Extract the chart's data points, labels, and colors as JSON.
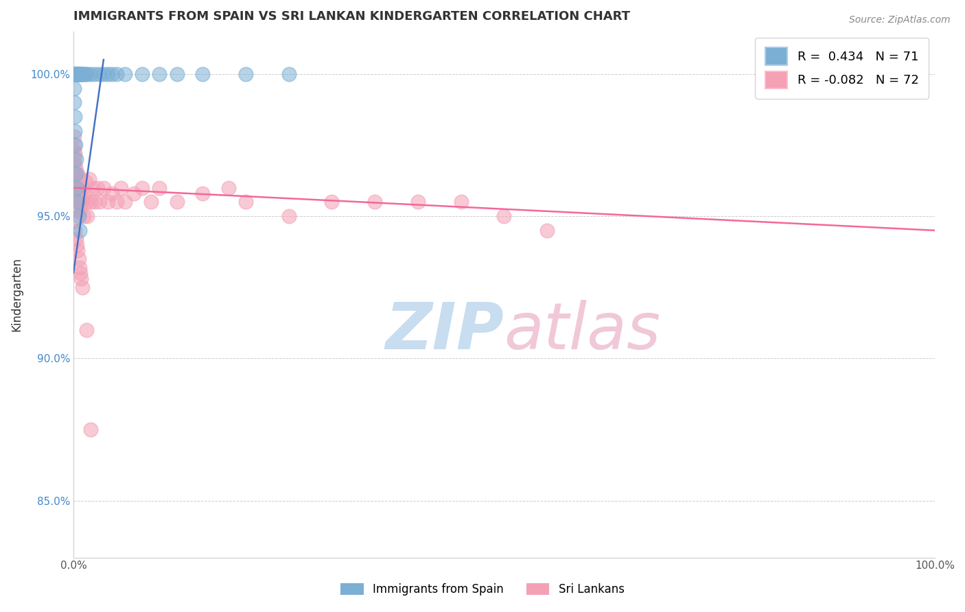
{
  "title": "IMMIGRANTS FROM SPAIN VS SRI LANKAN KINDERGARTEN CORRELATION CHART",
  "source_text": "Source: ZipAtlas.com",
  "ylabel": "Kindergarten",
  "xlim": [
    0.0,
    100.0
  ],
  "ylim": [
    83.0,
    101.5
  ],
  "y_ticks": [
    85.0,
    90.0,
    95.0,
    100.0
  ],
  "y_tick_labels": [
    "85.0%",
    "90.0%",
    "95.0%",
    "100.0%"
  ],
  "legend_blue_label": "R =  0.434   N = 71",
  "legend_pink_label": "R = -0.082   N = 72",
  "blue_color": "#7BAFD4",
  "pink_color": "#F4A0B5",
  "blue_line_color": "#4472C4",
  "pink_line_color": "#F4679A",
  "watermark": "ZIPatlas",
  "watermark_blue": "#C8DDEF",
  "watermark_pink": "#F0C8D8",
  "bottom_legend_blue": "Immigrants from Spain",
  "bottom_legend_pink": "Sri Lankans",
  "blue_x": [
    0.05,
    0.07,
    0.08,
    0.09,
    0.1,
    0.11,
    0.12,
    0.13,
    0.14,
    0.15,
    0.16,
    0.17,
    0.18,
    0.19,
    0.2,
    0.21,
    0.22,
    0.23,
    0.24,
    0.25,
    0.26,
    0.27,
    0.28,
    0.29,
    0.3,
    0.32,
    0.34,
    0.36,
    0.38,
    0.4,
    0.42,
    0.44,
    0.46,
    0.48,
    0.5,
    0.55,
    0.6,
    0.65,
    0.7,
    0.8,
    0.9,
    1.0,
    1.1,
    1.2,
    1.4,
    1.6,
    2.0,
    2.5,
    3.0,
    3.5,
    4.0,
    4.5,
    5.0,
    6.0,
    8.0,
    10.0,
    12.0,
    15.0,
    20.0,
    25.0,
    0.06,
    0.1,
    0.15,
    0.2,
    0.25,
    0.3,
    0.35,
    0.4,
    0.5,
    0.6,
    0.7
  ],
  "blue_y": [
    100.0,
    100.0,
    100.0,
    100.0,
    100.0,
    100.0,
    100.0,
    100.0,
    100.0,
    100.0,
    100.0,
    100.0,
    100.0,
    100.0,
    100.0,
    100.0,
    100.0,
    100.0,
    100.0,
    100.0,
    100.0,
    100.0,
    100.0,
    100.0,
    100.0,
    100.0,
    100.0,
    100.0,
    100.0,
    100.0,
    100.0,
    100.0,
    100.0,
    100.0,
    100.0,
    100.0,
    100.0,
    100.0,
    100.0,
    100.0,
    100.0,
    100.0,
    100.0,
    100.0,
    100.0,
    100.0,
    100.0,
    100.0,
    100.0,
    100.0,
    100.0,
    100.0,
    100.0,
    100.0,
    100.0,
    100.0,
    100.0,
    100.0,
    100.0,
    100.0,
    99.5,
    99.0,
    98.5,
    98.0,
    97.5,
    97.0,
    96.5,
    96.0,
    95.5,
    95.0,
    94.5
  ],
  "pink_x": [
    0.05,
    0.08,
    0.1,
    0.12,
    0.15,
    0.18,
    0.2,
    0.22,
    0.25,
    0.28,
    0.3,
    0.32,
    0.35,
    0.38,
    0.4,
    0.42,
    0.45,
    0.48,
    0.5,
    0.55,
    0.6,
    0.65,
    0.7,
    0.75,
    0.8,
    0.9,
    1.0,
    1.1,
    1.2,
    1.3,
    1.4,
    1.5,
    1.6,
    1.8,
    2.0,
    2.2,
    2.5,
    2.8,
    3.0,
    3.5,
    4.0,
    4.5,
    5.0,
    5.5,
    6.0,
    7.0,
    8.0,
    9.0,
    10.0,
    12.0,
    15.0,
    18.0,
    20.0,
    25.0,
    30.0,
    35.0,
    40.0,
    45.0,
    50.0,
    55.0,
    0.1,
    0.2,
    0.3,
    0.4,
    0.5,
    0.6,
    0.7,
    0.8,
    0.9,
    1.0,
    1.5,
    2.0
  ],
  "pink_y": [
    97.8,
    97.3,
    97.0,
    97.5,
    96.8,
    97.2,
    96.5,
    96.3,
    96.7,
    96.0,
    95.8,
    95.5,
    95.2,
    96.0,
    95.5,
    96.2,
    95.8,
    95.3,
    96.5,
    95.7,
    95.5,
    96.0,
    95.2,
    95.8,
    96.3,
    95.5,
    96.0,
    95.5,
    95.0,
    95.8,
    96.2,
    95.5,
    95.0,
    96.3,
    95.5,
    96.0,
    95.5,
    96.0,
    95.5,
    96.0,
    95.5,
    95.8,
    95.5,
    96.0,
    95.5,
    95.8,
    96.0,
    95.5,
    96.0,
    95.5,
    95.8,
    96.0,
    95.5,
    95.0,
    95.5,
    95.5,
    95.5,
    95.5,
    95.0,
    94.5,
    94.8,
    94.5,
    94.2,
    94.0,
    93.8,
    93.5,
    93.2,
    93.0,
    92.8,
    92.5,
    91.0,
    87.5
  ],
  "pink_line_start_y": 96.0,
  "pink_line_end_y": 94.5,
  "blue_line_start_x": 0.0,
  "blue_line_start_y": 93.0,
  "blue_line_end_x": 3.5,
  "blue_line_end_y": 100.5
}
